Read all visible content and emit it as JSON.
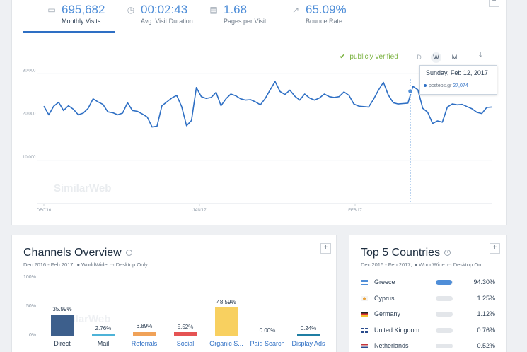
{
  "metrics": [
    {
      "icon": "monitor-icon",
      "value": "695,682",
      "label": "Monthly Visits"
    },
    {
      "icon": "stopwatch-icon",
      "value": "00:02:43",
      "label": "Avg. Visit Duration"
    },
    {
      "icon": "pages-icon",
      "value": "1.68",
      "label": "Pages per Visit"
    },
    {
      "icon": "bounce-arrow-icon",
      "value": "65.09%",
      "label": "Bounce Rate"
    }
  ],
  "traffic_chart": {
    "verified_label": "publicly verified",
    "granularity": [
      "D",
      "W",
      "M"
    ],
    "selected_granularity": "W",
    "watermark": "SimilarWeb",
    "tooltip": {
      "date": "Sunday, Feb 12, 2017",
      "site": "pcsteps.gr",
      "value": "27,074"
    },
    "colors": {
      "line": "#2e6fc4",
      "verified": "#7cb342"
    }
  },
  "chart_data": {
    "type": "line",
    "y_ticks": [
      "30,000",
      "20,000",
      "10,000"
    ],
    "x_ticks": [
      "DEC'16",
      "JAN'17",
      "FEB'17"
    ],
    "ylim": [
      0,
      32000
    ],
    "series": [
      {
        "values": [
          22500,
          20500,
          22500,
          23400,
          21500,
          22600,
          21800,
          20500,
          20900,
          22000,
          24200,
          23500,
          22900,
          21200,
          21000,
          20500,
          20900,
          23300,
          21500,
          21300,
          20700,
          20000,
          17700,
          17900,
          22600,
          23500,
          24400,
          25000,
          22400,
          18000,
          19200,
          26800,
          24700,
          24300,
          24500,
          25700,
          22600,
          24200,
          25300,
          24900,
          24200,
          23900,
          24000,
          23500,
          22800,
          24300,
          26300,
          28200,
          25900,
          25200,
          26200,
          24800,
          23900,
          25300,
          24400,
          23900,
          24400,
          25300,
          24700,
          24500,
          24700,
          25800,
          25000,
          23000,
          22500,
          22400,
          22300,
          24100,
          26200,
          28000,
          25100,
          23300,
          23000,
          23100,
          23200,
          27074,
          26300,
          22000,
          21100,
          18500,
          19100,
          18800,
          22300,
          23000,
          22800,
          22900,
          22400,
          21900,
          21100,
          20800,
          22200,
          22300
        ]
      }
    ]
  },
  "channels": {
    "title": "Channels Overview",
    "date_range": "Dec 2016 - Feb 2017,",
    "scope": "WorldWide",
    "device": "Desktop Only",
    "y_ticks": [
      "100%",
      "50%",
      "0%"
    ],
    "watermark": "SimilarWeb",
    "bars": [
      {
        "label": "Direct",
        "pct": 35.99,
        "pct_label": "35.99%",
        "color": "#3d5f8c",
        "link": false
      },
      {
        "label": "Mail",
        "pct": 2.76,
        "pct_label": "2.76%",
        "color": "#4db3d8",
        "link": false
      },
      {
        "label": "Referrals",
        "pct": 6.89,
        "pct_label": "6.89%",
        "color": "#f0a258",
        "link": true
      },
      {
        "label": "Social",
        "pct": 5.52,
        "pct_label": "5.52%",
        "color": "#e55353",
        "link": true
      },
      {
        "label": "Organic S...",
        "pct": 48.59,
        "pct_label": "48.59%",
        "color": "#f8d060",
        "link": true
      },
      {
        "label": "Paid Search",
        "pct": 0.0,
        "pct_label": "0.00%",
        "color": "#6ec6e8",
        "link": true
      },
      {
        "label": "Display Ads",
        "pct": 0.24,
        "pct_label": "0.24%",
        "color": "#1f7ea3",
        "link": true
      }
    ]
  },
  "countries": {
    "title": "Top 5 Countries",
    "date_range": "Dec 2016 - Feb 2017,",
    "scope": "WorldWide",
    "device": "Desktop On",
    "rows": [
      {
        "name": "Greece",
        "pct": 94.3,
        "pct_label": "94.30%",
        "flag": "greece-flag-icon"
      },
      {
        "name": "Cyprus",
        "pct": 1.25,
        "pct_label": "1.25%",
        "flag": "cyprus-flag-icon"
      },
      {
        "name": "Germany",
        "pct": 1.12,
        "pct_label": "1.12%",
        "flag": "germany-flag-icon"
      },
      {
        "name": "United Kingdom",
        "pct": 0.76,
        "pct_label": "0.76%",
        "flag": "uk-flag-icon"
      },
      {
        "name": "Netherlands",
        "pct": 0.52,
        "pct_label": "0.52%",
        "flag": "netherlands-flag-icon"
      }
    ]
  }
}
